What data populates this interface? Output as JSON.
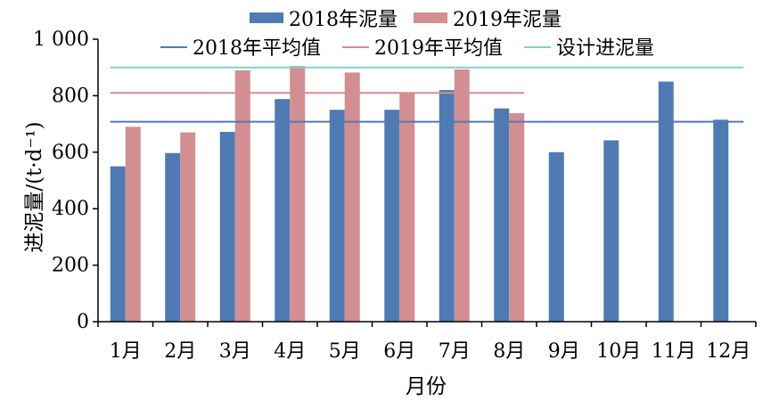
{
  "chart_data": {
    "type": "bar",
    "xlabel": "月份",
    "ylabel": "进泥量/(t·d⁻¹)",
    "ylim": [
      0,
      1000
    ],
    "yticks": [
      0,
      200,
      400,
      600,
      800,
      1000
    ],
    "ytick_labels": [
      "0",
      "200",
      "400",
      "600",
      "800",
      "1 000"
    ],
    "grid": false,
    "legend_position": "top",
    "categories": [
      "1月",
      "2月",
      "3月",
      "4月",
      "5月",
      "6月",
      "7月",
      "8月",
      "9月",
      "10月",
      "11月",
      "12月"
    ],
    "series": [
      {
        "name": "2018年泥量",
        "color": "#4f7ab3",
        "values": [
          550,
          597,
          672,
          788,
          750,
          750,
          820,
          755,
          600,
          642,
          850,
          715
        ]
      },
      {
        "name": "2019年泥量",
        "color": "#d38e91",
        "values": [
          690,
          670,
          890,
          905,
          882,
          810,
          893,
          738,
          null,
          null,
          null,
          null
        ]
      }
    ],
    "reference_lines": [
      {
        "name": "2018年平均值",
        "color": "#4f7ab3",
        "value": 708,
        "from": "1月",
        "to": "12月"
      },
      {
        "name": "2019年平均值",
        "color": "#d38e91",
        "value": 810,
        "from": "1月",
        "to": "8月"
      },
      {
        "name": "设计进泥量",
        "color": "#7fd0cc",
        "value": 900,
        "from": "1月",
        "to": "12月"
      }
    ]
  }
}
